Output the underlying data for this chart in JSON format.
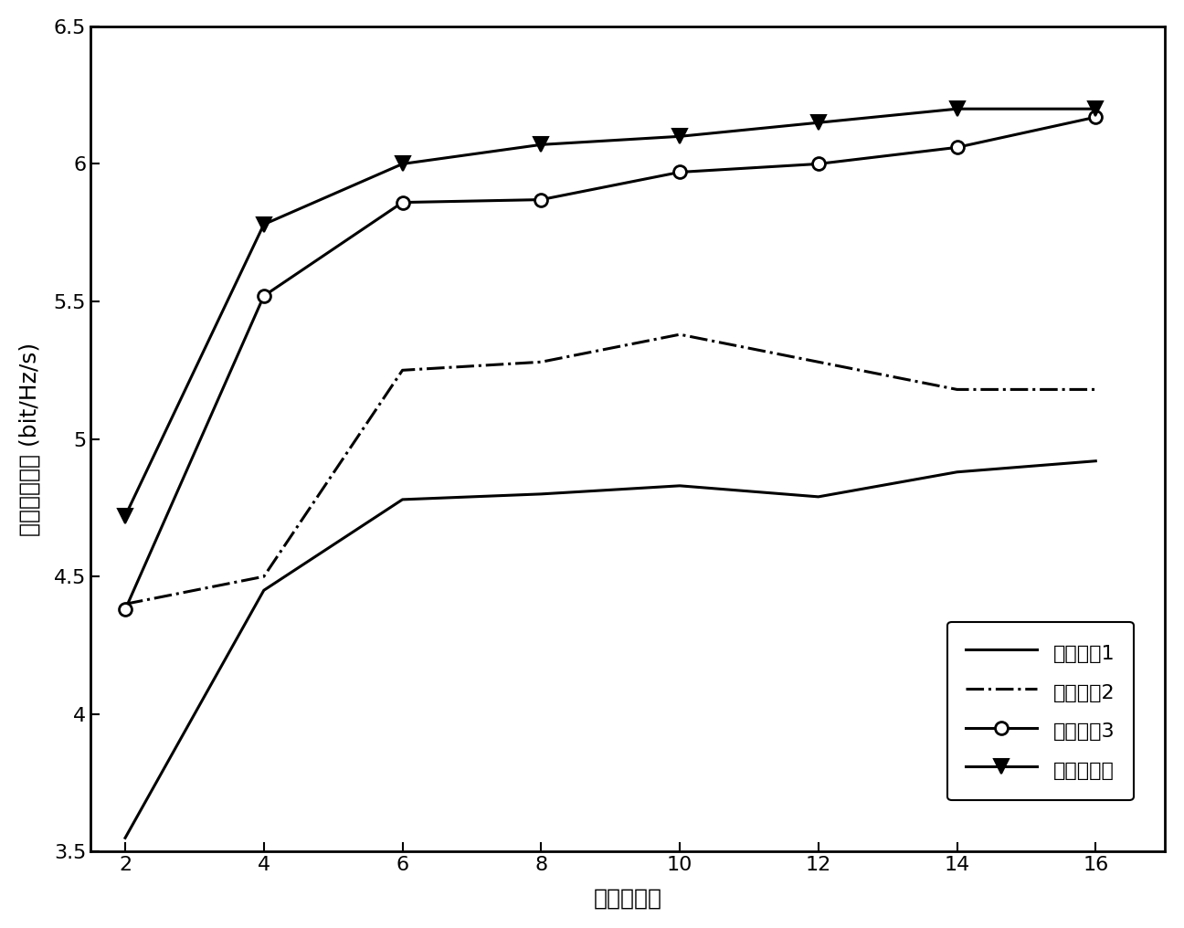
{
  "x": [
    2,
    4,
    6,
    8,
    10,
    12,
    14,
    16
  ],
  "series1": [
    3.55,
    4.45,
    4.78,
    4.8,
    4.83,
    4.79,
    4.88,
    4.92
  ],
  "series2": [
    4.4,
    4.5,
    5.25,
    5.28,
    5.38,
    5.28,
    5.18,
    5.18
  ],
  "series3": [
    4.38,
    5.52,
    5.86,
    5.87,
    5.97,
    6.0,
    6.06,
    6.17
  ],
  "series4": [
    4.72,
    5.78,
    6.0,
    6.07,
    6.1,
    6.15,
    6.2,
    6.2
  ],
  "legend_labels": [
    "对比算法1",
    "对比算法2",
    "对比算法3",
    "本发明算法"
  ],
  "xlabel": "次用户数量",
  "ylabel": "网络传输速率 (bit/Hz/s)",
  "xlim": [
    1.5,
    17.0
  ],
  "ylim": [
    3.5,
    6.5
  ],
  "xticks": [
    2,
    4,
    6,
    8,
    10,
    12,
    14,
    16
  ],
  "yticks": [
    3.5,
    4.0,
    4.5,
    5.0,
    5.5,
    6.0,
    6.5
  ],
  "color": "#000000",
  "linewidth": 2.2,
  "markersize": 10,
  "legend_loc": "lower right",
  "label_fontsize": 18,
  "tick_fontsize": 16,
  "legend_fontsize": 16
}
